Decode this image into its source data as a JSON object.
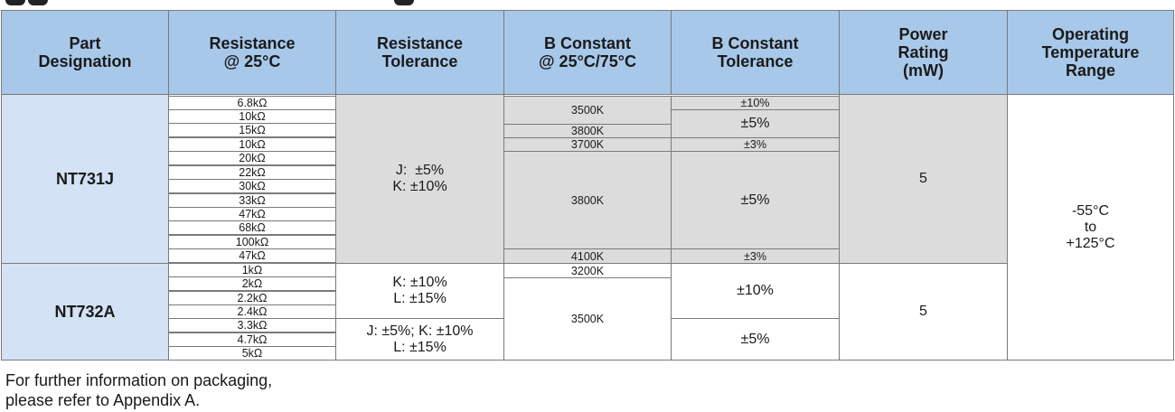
{
  "headers": [
    "Part\nDesignation",
    "Resistance\n@ 25°C",
    "Resistance\nTolerance",
    "B Constant\n@ 25°C/75°C",
    "B Constant\nTolerance",
    "Power\nRating\n(mW)",
    "Operating\nTemperature\nRange"
  ],
  "parts": {
    "nt731j": "NT731J",
    "nt732a": "NT732A"
  },
  "resistances_731j": [
    "6.8kΩ",
    "10kΩ",
    "15kΩ",
    "10kΩ",
    "20kΩ",
    "22kΩ",
    "30kΩ",
    "33kΩ",
    "47kΩ",
    "68kΩ",
    "100kΩ",
    "47kΩ"
  ],
  "resistances_732a": [
    "1kΩ",
    "2kΩ",
    "2.2kΩ",
    "2.4kΩ",
    "3.3kΩ",
    "4.7kΩ",
    "5kΩ"
  ],
  "res_tolerance": {
    "nt731j_line1": "J:  ±5%",
    "nt731j_line2": "K: ±10%",
    "nt732a_a_line1": "K: ±10%",
    "nt732a_a_line2": "L: ±15%",
    "nt732a_b_line1": "J: ±5%; K: ±10%",
    "nt732a_b_line2": "L: ±15%"
  },
  "b_constant": {
    "b3500_top": "3500K",
    "b3800_a": "3800K",
    "b3700": "3700K",
    "b3800_mid": "3800K",
    "b4100": "4100K",
    "b3200": "3200K",
    "b3500_bottom": "3500K"
  },
  "b_tolerance": {
    "t10_top": "±10%",
    "t5_a": "±5%",
    "t3_a": "±3%",
    "t5_mid": "±5%",
    "t3_b": "±3%",
    "t10_732a": "±10%",
    "t5_732a": "±5%"
  },
  "power": {
    "nt731j": "5",
    "nt732a": "5"
  },
  "temp_range": {
    "line1": "-55°C",
    "line2": "to",
    "line3": "+125°C"
  },
  "footer": {
    "line1": "For further information on packaging,",
    "line2": "please refer to Appendix A."
  }
}
